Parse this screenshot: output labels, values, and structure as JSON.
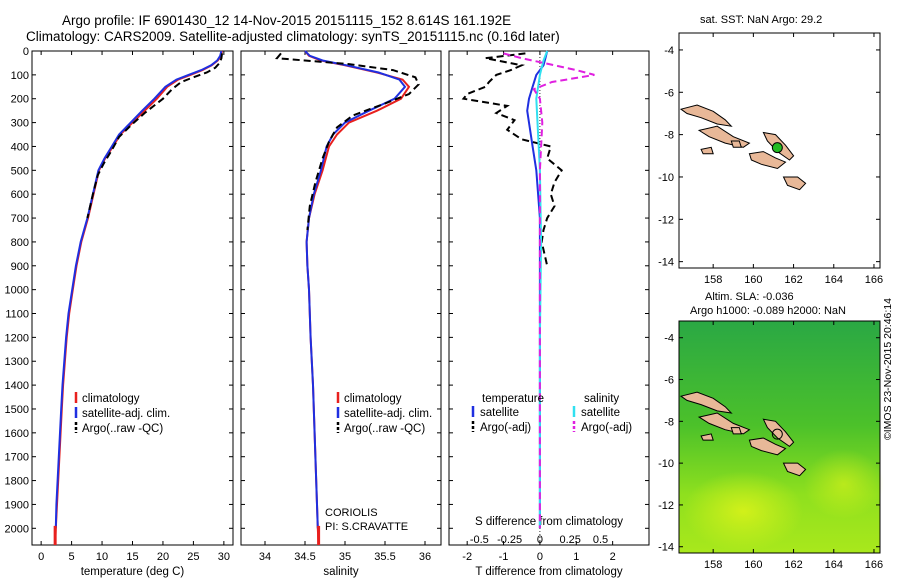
{
  "header": {
    "title_line1": "Argo profile: IF 6901430_12 14-Nov-2015 20151115_152 8.614S 161.192E",
    "title_line2": "Climatology: CARS2009. Satellite-adjusted climatology: synTS_20151115.nc (0.16d later)"
  },
  "colors": {
    "climatology": "#e8201e",
    "satellite": "#1f2fe0",
    "argo": "#000000",
    "sat_salinity": "#30e0f0",
    "argo_salinity": "#e020e0",
    "land": "#e8b898",
    "float_marker": "#22bb22"
  },
  "credit": "©IMOS 23-Nov-2015 20:46:14",
  "chart_data": [
    {
      "type": "line",
      "id": "temperature",
      "xlabel": "temperature (deg C)",
      "ylabel": "",
      "xlim": [
        -1.5,
        31.5
      ],
      "ylim": [
        2070,
        0
      ],
      "x_ticks": [
        0,
        5,
        10,
        15,
        20,
        25,
        30
      ],
      "y_ticks": [
        0,
        100,
        200,
        300,
        400,
        500,
        600,
        700,
        800,
        900,
        1000,
        1100,
        1200,
        1300,
        1400,
        1500,
        1600,
        1700,
        1800,
        1900,
        2000
      ],
      "legend": [
        "climatology",
        "satellite-adj. clim.",
        "Argo(..raw -QC)"
      ],
      "series": [
        {
          "name": "climatology",
          "style": "solid",
          "color": "#e8201e",
          "points": [
            [
              29.7,
              0
            ],
            [
              29.5,
              20
            ],
            [
              29.0,
              40
            ],
            [
              28.0,
              60
            ],
            [
              26.5,
              80
            ],
            [
              24.5,
              100
            ],
            [
              22.5,
              120
            ],
            [
              20.7,
              150
            ],
            [
              19.0,
              200
            ],
            [
              17.0,
              250
            ],
            [
              15.0,
              300
            ],
            [
              13.0,
              350
            ],
            [
              11.8,
              400
            ],
            [
              10.5,
              450
            ],
            [
              9.5,
              500
            ],
            [
              8.6,
              600
            ],
            [
              7.7,
              700
            ],
            [
              6.6,
              800
            ],
            [
              5.8,
              900
            ],
            [
              5.2,
              1000
            ],
            [
              4.6,
              1100
            ],
            [
              4.2,
              1200
            ],
            [
              3.9,
              1300
            ],
            [
              3.6,
              1400
            ],
            [
              3.4,
              1500
            ],
            [
              3.2,
              1600
            ],
            [
              3.0,
              1700
            ],
            [
              2.8,
              1800
            ],
            [
              2.6,
              1900
            ],
            [
              2.4,
              2000
            ],
            [
              2.3,
              2070
            ]
          ]
        },
        {
          "name": "satellite-adj. clim.",
          "style": "solid",
          "color": "#1f2fe0",
          "points": [
            [
              29.6,
              0
            ],
            [
              29.4,
              20
            ],
            [
              28.9,
              40
            ],
            [
              27.9,
              60
            ],
            [
              26.3,
              80
            ],
            [
              24.2,
              100
            ],
            [
              22.2,
              120
            ],
            [
              20.4,
              150
            ],
            [
              18.6,
              200
            ],
            [
              16.6,
              250
            ],
            [
              14.7,
              300
            ],
            [
              12.8,
              350
            ],
            [
              11.6,
              400
            ],
            [
              10.4,
              450
            ],
            [
              9.4,
              500
            ],
            [
              8.5,
              600
            ],
            [
              7.6,
              700
            ],
            [
              6.5,
              800
            ],
            [
              5.7,
              900
            ],
            [
              5.1,
              1000
            ],
            [
              4.5,
              1100
            ],
            [
              4.1,
              1200
            ],
            [
              3.8,
              1300
            ],
            [
              3.5,
              1400
            ],
            [
              3.3,
              1500
            ],
            [
              3.1,
              1600
            ],
            [
              2.9,
              1700
            ],
            [
              2.7,
              1800
            ],
            [
              2.5,
              1900
            ],
            [
              2.4,
              2000
            ]
          ]
        },
        {
          "name": "Argo(..raw -QC)",
          "style": "dashed",
          "color": "#000000",
          "points": [
            [
              29.7,
              10
            ],
            [
              29.6,
              30
            ],
            [
              29.3,
              50
            ],
            [
              28.6,
              70
            ],
            [
              27.2,
              90
            ],
            [
              25.0,
              110
            ],
            [
              23.0,
              130
            ],
            [
              21.5,
              160
            ],
            [
              20.0,
              200
            ],
            [
              17.0,
              260
            ],
            [
              14.8,
              310
            ],
            [
              12.8,
              360
            ],
            [
              11.5,
              420
            ],
            [
              10.3,
              470
            ],
            [
              9.3,
              520
            ],
            [
              8.5,
              600
            ],
            [
              7.6,
              700
            ]
          ]
        }
      ]
    },
    {
      "type": "line",
      "id": "salinity",
      "xlabel": "salinity",
      "ylabel": "",
      "xlim": [
        33.7,
        36.2
      ],
      "ylim": [
        2070,
        0
      ],
      "x_ticks": [
        34,
        34.5,
        35,
        35.5,
        36
      ],
      "x_tick_labels": [
        "34",
        "34.5",
        "35",
        "35.5",
        "36"
      ],
      "legend": [
        "climatology",
        "satellite-adj. clim.",
        "Argo(..raw -QC)"
      ],
      "annotation": [
        "CORIOLIS",
        "PI: S.CRAVATTE"
      ],
      "series": [
        {
          "name": "climatology",
          "style": "solid",
          "color": "#e8201e",
          "points": [
            [
              34.5,
              0
            ],
            [
              34.55,
              20
            ],
            [
              34.7,
              40
            ],
            [
              35.0,
              60
            ],
            [
              35.4,
              90
            ],
            [
              35.72,
              120
            ],
            [
              35.8,
              150
            ],
            [
              35.7,
              200
            ],
            [
              35.4,
              250
            ],
            [
              35.05,
              300
            ],
            [
              34.9,
              350
            ],
            [
              34.8,
              400
            ],
            [
              34.72,
              500
            ],
            [
              34.62,
              600
            ],
            [
              34.55,
              700
            ],
            [
              34.52,
              800
            ],
            [
              34.53,
              900
            ],
            [
              34.55,
              1000
            ],
            [
              34.57,
              1200
            ],
            [
              34.6,
              1400
            ],
            [
              34.62,
              1600
            ],
            [
              34.64,
              1800
            ],
            [
              34.66,
              2000
            ],
            [
              34.67,
              2070
            ]
          ]
        },
        {
          "name": "satellite-adj. clim.",
          "style": "solid",
          "color": "#1f2fe0",
          "points": [
            [
              34.5,
              0
            ],
            [
              34.56,
              20
            ],
            [
              34.72,
              40
            ],
            [
              35.02,
              60
            ],
            [
              35.42,
              90
            ],
            [
              35.68,
              120
            ],
            [
              35.75,
              150
            ],
            [
              35.62,
              200
            ],
            [
              35.3,
              250
            ],
            [
              35.0,
              300
            ],
            [
              34.85,
              350
            ],
            [
              34.77,
              400
            ],
            [
              34.7,
              500
            ],
            [
              34.61,
              600
            ],
            [
              34.55,
              700
            ],
            [
              34.52,
              800
            ],
            [
              34.53,
              900
            ],
            [
              34.55,
              1000
            ],
            [
              34.57,
              1200
            ],
            [
              34.6,
              1400
            ],
            [
              34.62,
              1600
            ],
            [
              34.64,
              1800
            ],
            [
              34.66,
              2000
            ]
          ]
        },
        {
          "name": "Argo(..raw -QC)",
          "style": "dashed",
          "color": "#000000",
          "points": [
            [
              34.2,
              10
            ],
            [
              34.15,
              30
            ],
            [
              34.5,
              40
            ],
            [
              35.05,
              55
            ],
            [
              35.6,
              80
            ],
            [
              35.88,
              110
            ],
            [
              35.92,
              140
            ],
            [
              35.8,
              180
            ],
            [
              35.5,
              220
            ],
            [
              35.1,
              270
            ],
            [
              34.9,
              320
            ],
            [
              34.8,
              380
            ],
            [
              34.72,
              450
            ],
            [
              34.63,
              550
            ],
            [
              34.56,
              650
            ],
            [
              34.53,
              750
            ]
          ]
        }
      ]
    },
    {
      "type": "line",
      "id": "difference",
      "xlabel": "T difference from climatology",
      "x2label": "S difference from climatology",
      "ylabel": "",
      "xlim": [
        -2.5,
        3.0
      ],
      "ylim": [
        2070,
        0
      ],
      "x_ticks": [
        -2,
        -1,
        0,
        1,
        2
      ],
      "x2_ticks": [
        -0.5,
        -0.25,
        0,
        0.25,
        0.5
      ],
      "x2_tick_labels": [
        "-0.5",
        "-0.25",
        "0",
        "0.25",
        "0.5"
      ],
      "x2_scale": 3.333,
      "legend_temperature_header": "temperature",
      "legend_salinity_header": "salinity",
      "legend": [
        "satellite",
        "Argo(-adj)",
        "satellite",
        "Argo(-adj)"
      ],
      "series": [
        {
          "name": "satellite",
          "variable": "temperature",
          "style": "solid",
          "color": "#1f2fe0",
          "points": [
            [
              0.2,
              0
            ],
            [
              0.15,
              30
            ],
            [
              0.1,
              60
            ],
            [
              -0.1,
              100
            ],
            [
              -0.2,
              150
            ],
            [
              -0.3,
              200
            ],
            [
              -0.35,
              250
            ],
            [
              -0.3,
              300
            ],
            [
              -0.2,
              400
            ],
            [
              -0.1,
              500
            ],
            [
              0,
              700
            ],
            [
              0,
              1000
            ],
            [
              0,
              1500
            ],
            [
              0,
              2000
            ]
          ]
        },
        {
          "name": "Argo(-adj)",
          "variable": "temperature",
          "style": "dashed",
          "color": "#000000",
          "points": [
            [
              -0.4,
              10
            ],
            [
              -1.5,
              30
            ],
            [
              -0.5,
              60
            ],
            [
              -0.8,
              80
            ],
            [
              -1.2,
              100
            ],
            [
              -1.4,
              130
            ],
            [
              -1.5,
              150
            ],
            [
              -2.0,
              180
            ],
            [
              -2.1,
              200
            ],
            [
              -0.9,
              230
            ],
            [
              -1.2,
              260
            ],
            [
              -0.7,
              290
            ],
            [
              -0.9,
              330
            ],
            [
              -0.5,
              370
            ],
            [
              0.3,
              400
            ],
            [
              0.2,
              450
            ],
            [
              0.6,
              500
            ],
            [
              0.4,
              550
            ],
            [
              0.3,
              600
            ],
            [
              0.4,
              650
            ],
            [
              0.2,
              700
            ],
            [
              0.1,
              750
            ],
            [
              0.05,
              800
            ],
            [
              0.2,
              900
            ]
          ]
        },
        {
          "name": "satellite",
          "variable": "salinity",
          "style": "solid",
          "color": "#30e0f0",
          "points": [
            [
              0.06,
              0
            ],
            [
              0.03,
              40
            ],
            [
              0.0,
              100
            ],
            [
              -0.03,
              200
            ],
            [
              -0.02,
              300
            ],
            [
              0.0,
              500
            ],
            [
              0.01,
              800
            ],
            [
              0.0,
              1200
            ],
            [
              0.0,
              1600
            ],
            [
              0.0,
              2000
            ]
          ]
        },
        {
          "name": "Argo(-adj)",
          "variable": "salinity",
          "style": "dashed",
          "color": "#e020e0",
          "points": [
            [
              -0.3,
              10
            ],
            [
              -0.15,
              30
            ],
            [
              0.12,
              60
            ],
            [
              0.3,
              80
            ],
            [
              0.45,
              100
            ],
            [
              0.1,
              130
            ],
            [
              -0.05,
              160
            ],
            [
              0.0,
              200
            ],
            [
              0.02,
              300
            ],
            [
              0.0,
              500
            ],
            [
              0.0,
              800
            ],
            [
              0.0,
              1200
            ],
            [
              0.0,
              1500
            ],
            [
              0.0,
              2000
            ]
          ]
        }
      ]
    },
    {
      "type": "map",
      "id": "sst_map",
      "title": "sat. SST: NaN Argo: 29.2",
      "xlim": [
        156.3,
        166.3
      ],
      "ylim": [
        -14.3,
        -3.2
      ],
      "x_ticks": [
        158,
        160,
        162,
        164,
        166
      ],
      "y_ticks": [
        -4,
        -6,
        -8,
        -10,
        -12,
        -14
      ],
      "float_position": [
        161.192,
        -8.614
      ]
    },
    {
      "type": "heatmap",
      "id": "sla_map",
      "title_line1": "Altim. SLA: -0.036",
      "title_line2": "Argo h1000: -0.089 h2000: NaN",
      "xlim": [
        156.3,
        166.3
      ],
      "ylim": [
        -14.3,
        -3.2
      ],
      "x_ticks": [
        158,
        160,
        162,
        164,
        166
      ],
      "y_ticks": [
        -4,
        -6,
        -8,
        -10,
        -12,
        -14
      ],
      "float_position": [
        161.192,
        -8.614
      ]
    }
  ]
}
